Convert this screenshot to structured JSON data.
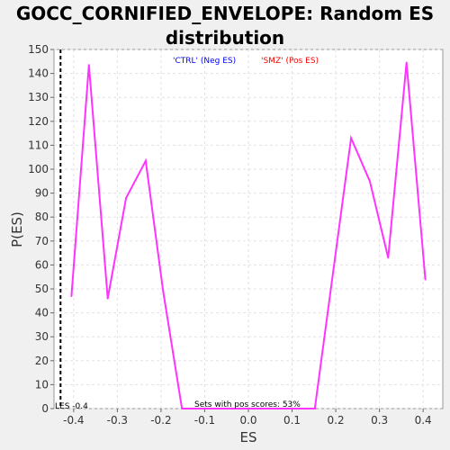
{
  "chart_data": {
    "type": "line",
    "title": "GOCC_CORNIFIED_ENVELOPE: Random ES distribution",
    "xlabel": "ES",
    "ylabel": "P(ES)",
    "xlim": [
      -0.445,
      0.445
    ],
    "ylim": [
      0,
      150
    ],
    "xticks": [
      -0.4,
      -0.3,
      -0.2,
      -0.1,
      0.0,
      0.1,
      0.2,
      0.3,
      0.4
    ],
    "xtick_labels": [
      "-0.4",
      "-0.3",
      "-0.2",
      "-0.1",
      "0.0",
      "0.1",
      "0.2",
      "0.3",
      "0.4"
    ],
    "yticks": [
      0,
      10,
      20,
      30,
      40,
      50,
      60,
      70,
      80,
      90,
      100,
      110,
      120,
      130,
      140,
      150
    ],
    "grid": true,
    "legend": [
      {
        "label": "'CTRL' (Neg ES)",
        "color": "#0000ff"
      },
      {
        "label": "'SMZ' (Pos ES)",
        "color": "#ff0000"
      }
    ],
    "series": [
      {
        "color": "#ff33ff",
        "x": [
          -0.405,
          -0.365,
          -0.322,
          -0.28,
          -0.235,
          -0.195,
          -0.152,
          0.152,
          0.235,
          0.278,
          0.32,
          0.362,
          0.405
        ],
        "y": [
          47,
          143.5,
          46,
          88,
          103.5,
          49,
          0,
          0,
          113,
          95,
          63,
          144.5,
          54
        ]
      }
    ],
    "es_marker": {
      "x": -0.43,
      "label": "LES -0.4"
    },
    "annotation": "Sets with pos scores: 53%"
  }
}
